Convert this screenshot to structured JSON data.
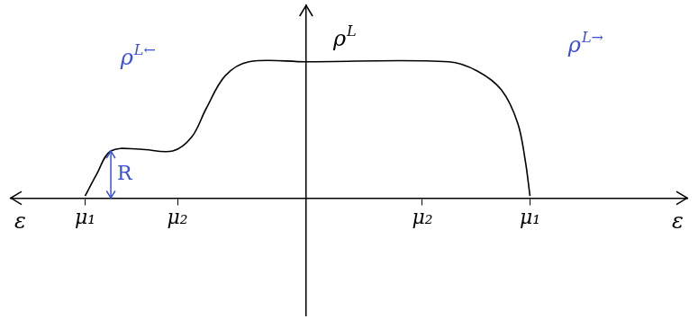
{
  "chart_data": {
    "type": "line",
    "x_label": "ε",
    "y_label": {
      "base": "ρ",
      "sup": "L"
    },
    "x": [
      -2.32,
      -2.2,
      -2.05,
      -1.75,
      -1.4,
      -1.2,
      -1.05,
      -0.85,
      -0.6,
      0,
      1.5,
      1.8,
      2.05,
      2.22,
      2.3,
      2.35
    ],
    "values": [
      0.02,
      0.25,
      0.5,
      0.52,
      0.5,
      0.65,
      0.95,
      1.3,
      1.45,
      1.45,
      1.45,
      1.35,
      1.15,
      0.8,
      0.4,
      0.02
    ],
    "color": "#000000",
    "xlim": [
      -3.1,
      4.0
    ],
    "ylim": [
      -1.25,
      2.05
    ],
    "xticks": [
      {
        "value": -2.32,
        "label": "μ₁"
      },
      {
        "value": -1.35,
        "label": "μ₂"
      },
      {
        "value": 1.22,
        "label": "μ₂"
      },
      {
        "value": 2.35,
        "label": "μ₁"
      }
    ],
    "tick_labels": "x",
    "grid": false,
    "annotations": [
      {
        "base": "ρ",
        "sup": "L←"
      },
      {
        "base": "ρ",
        "sup": "L→"
      },
      {
        "text": "R",
        "x": -2.05,
        "y": [
          0,
          0.5
        ]
      }
    ]
  }
}
